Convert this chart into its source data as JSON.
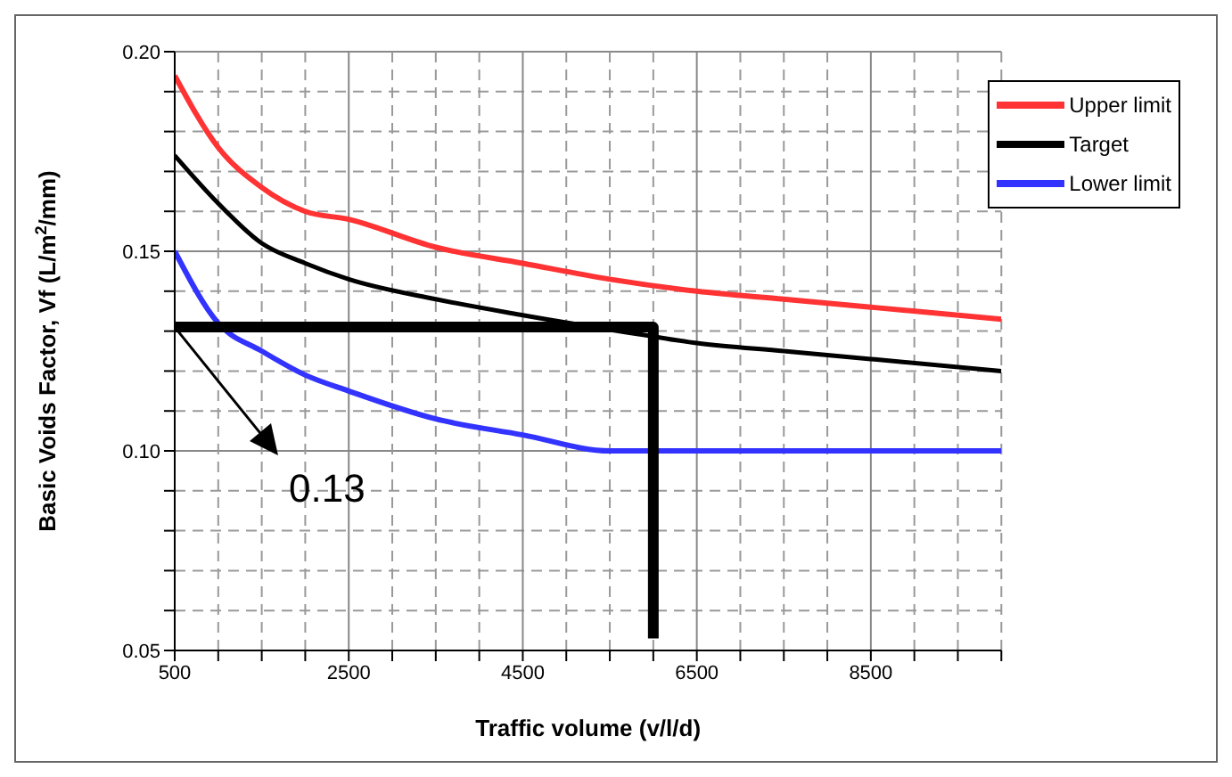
{
  "chart_data": {
    "type": "line",
    "xlabel": "Traffic volume (v/l/d)",
    "ylabel": "Basic Voids Factor, Vf (L/m$^{2}$/mm)",
    "xlim": [
      500,
      10000
    ],
    "xticks": [
      500,
      {
        "value": 1000,
        "label": null
      },
      {
        "value": 1500,
        "label": null
      },
      {
        "value": 2000,
        "label": null
      },
      2500,
      {
        "value": 3000,
        "label": null
      },
      {
        "value": 3500,
        "label": null
      },
      {
        "value": 4000,
        "label": null
      },
      4500,
      {
        "value": 5000,
        "label": null
      },
      {
        "value": 5500,
        "label": null
      },
      {
        "value": 6000,
        "label": null
      },
      6500,
      {
        "value": 7000,
        "label": null
      },
      {
        "value": 7500,
        "label": null
      },
      {
        "value": 8000,
        "label": null
      },
      8500,
      {
        "value": 9000,
        "label": null
      },
      {
        "value": 9500,
        "label": null
      },
      {
        "value": 10000,
        "label": null
      }
    ],
    "ylim": [
      0.05,
      0.2
    ],
    "yticks": [
      {
        "value": 0.05,
        "label": "0.05"
      },
      {
        "value": 0.06,
        "label": null
      },
      {
        "value": 0.07,
        "label": null
      },
      {
        "value": 0.08,
        "label": null
      },
      {
        "value": 0.09,
        "label": null
      },
      {
        "value": 0.1,
        "label": "0.10"
      },
      {
        "value": 0.11,
        "label": null
      },
      {
        "value": 0.12,
        "label": null
      },
      {
        "value": 0.13,
        "label": null
      },
      {
        "value": 0.14,
        "label": null
      },
      {
        "value": 0.15,
        "label": "0.15"
      },
      {
        "value": 0.16,
        "label": null
      },
      {
        "value": 0.17,
        "label": null
      },
      {
        "value": 0.18,
        "label": null
      },
      {
        "value": 0.19,
        "label": null
      },
      {
        "value": 0.2,
        "label": "0.20"
      }
    ],
    "grid": true,
    "legend": "top right",
    "line_style": "solid",
    "series": [
      {
        "name": "Upper limit",
        "color": "#ff3333",
        "x": [
          500,
          1000,
          1500,
          2000,
          2500,
          3500,
          4500,
          5500,
          6500,
          7500,
          8500,
          10000
        ],
        "values": [
          0.194,
          0.176,
          0.166,
          0.16,
          0.158,
          0.151,
          0.147,
          0.143,
          0.14,
          0.138,
          0.136,
          0.133
        ]
      },
      {
        "name": "Target",
        "color": "#000000",
        "x": [
          500,
          1000,
          1500,
          2000,
          2500,
          3500,
          4500,
          5900,
          6500,
          7500,
          8500,
          10000
        ],
        "values": [
          0.174,
          0.162,
          0.152,
          0.147,
          0.143,
          0.138,
          0.134,
          0.129,
          0.127,
          0.125,
          0.123,
          0.12
        ]
      },
      {
        "name": "Lower limit",
        "color": "#3333ff",
        "x": [
          500,
          1000,
          1500,
          2000,
          2500,
          3500,
          4500,
          5500,
          10000
        ],
        "values": [
          0.15,
          0.132,
          0.125,
          0.119,
          0.115,
          0.108,
          0.104,
          0.1,
          0.1
        ]
      },
      {
        "color": "#000000",
        "x": [
          500,
          6000,
          6000
        ],
        "values": [
          0.131,
          0.131,
          0.053
        ]
      }
    ],
    "annotations": [
      {
        "text": "0.13",
        "x": 500,
        "y": 0.131
      }
    ]
  }
}
